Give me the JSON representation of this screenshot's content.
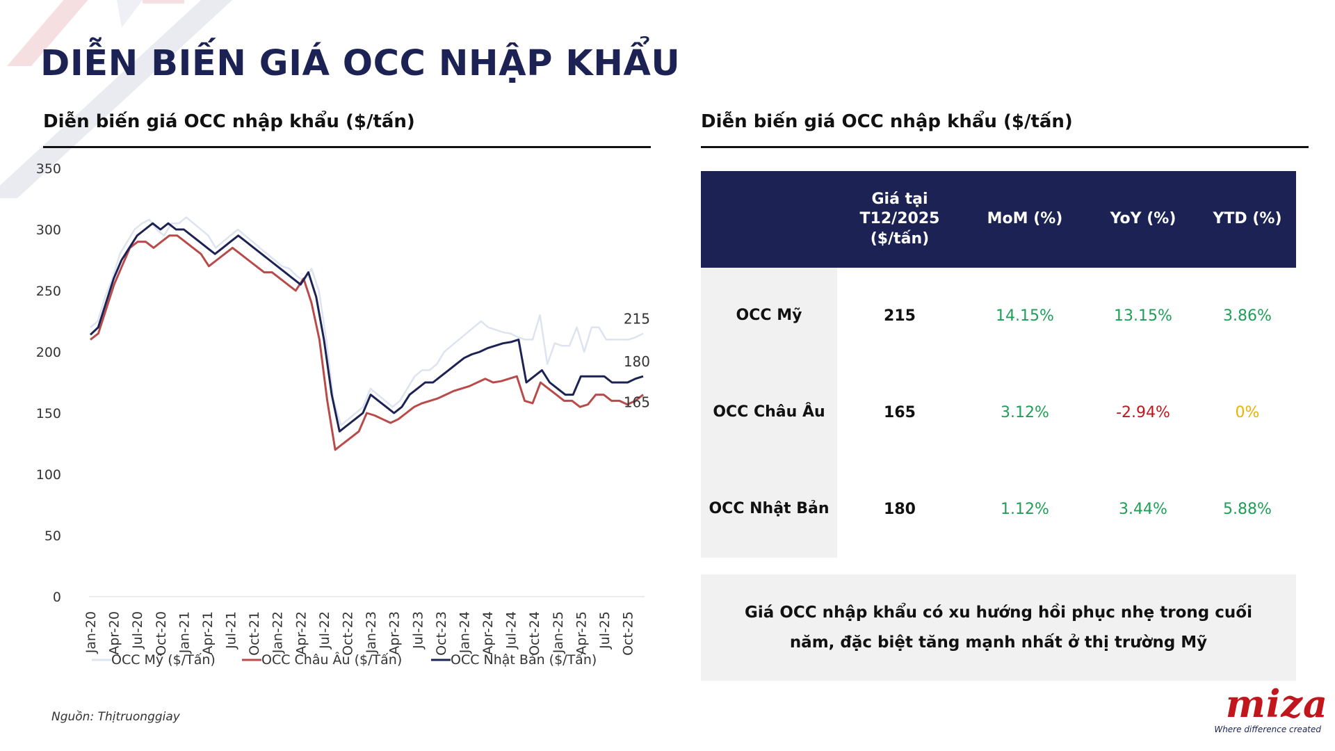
{
  "page": {
    "title": "DIỄN BIẾN GIÁ OCC NHẬP KHẨU",
    "source": "Nguồn: Thịtruonggiay"
  },
  "left_panel": {
    "title": "Diễn biến giá OCC nhập khẩu ($/tấn)"
  },
  "right_panel": {
    "title": "Diễn biến giá OCC nhập khẩu ($/tấn)",
    "table": {
      "headers": [
        "",
        "Giá tại T12/2025 ($/tấn)",
        "MoM (%)",
        "YoY (%)",
        "YTD (%)"
      ],
      "rows": [
        {
          "name": "OCC Mỹ",
          "price": "215",
          "mom": "14.15%",
          "yoy": "13.15%",
          "ytd": "3.86%"
        },
        {
          "name": "OCC Châu Âu",
          "price": "165",
          "mom": "3.12%",
          "yoy": "-2.94%",
          "ytd": "0%"
        },
        {
          "name": "OCC Nhật Bản",
          "price": "180",
          "mom": "1.12%",
          "yoy": "3.44%",
          "ytd": "5.88%"
        }
      ]
    },
    "note": "Giá OCC nhập khẩu có xu hướng hồi phục nhẹ trong cuối năm, đặc biệt tăng mạnh nhất ở thị trường Mỹ"
  },
  "colors": {
    "navy": "#1c2354",
    "positive": "#1e9e57",
    "negative": "#c0161c",
    "neutral": "#e9b400",
    "brand_red": "#c0161c"
  },
  "logo": {
    "text": "miza",
    "tagline": "Where difference created"
  },
  "chart_data": {
    "type": "line",
    "title": "Diễn biến giá OCC nhập khẩu ($/tấn)",
    "ylim": [
      0,
      350
    ],
    "yticks": [
      0,
      50,
      100,
      150,
      200,
      250,
      300,
      350
    ],
    "grid": false,
    "legend_position": "bottom",
    "x_tick_labels": [
      "Jan-20",
      "Apr-20",
      "Jul-20",
      "Oct-20",
      "Jan-21",
      "Apr-21",
      "Jul-21",
      "Oct-21",
      "Jan-22",
      "Apr-22",
      "Jul-22",
      "Oct-22",
      "Jan-23",
      "Apr-23",
      "Jul-23",
      "Oct-23",
      "Jan-24",
      "Apr-24",
      "Jul-24",
      "Oct-24",
      "Jan-25",
      "Apr-25",
      "Jul-25",
      "Oct-25"
    ],
    "x_start": "Jan-20",
    "x_end": "Dec-25",
    "series": [
      {
        "name": "OCC Mỹ ($/Tấn)",
        "color": "#dde3ef",
        "end_label": "215",
        "values": [
          220,
          225,
          245,
          260,
          280,
          290,
          300,
          305,
          308,
          300,
          295,
          305,
          305,
          310,
          305,
          300,
          295,
          285,
          290,
          295,
          300,
          295,
          290,
          285,
          280,
          275,
          270,
          268,
          262,
          258,
          268,
          250,
          210,
          160,
          140,
          145,
          150,
          155,
          170,
          165,
          160,
          155,
          160,
          170,
          180,
          185,
          185,
          190,
          200,
          205,
          210,
          215,
          220,
          225,
          220,
          218,
          216,
          215,
          212,
          210,
          210,
          230,
          190,
          207,
          205,
          205,
          220,
          200,
          220,
          220,
          210,
          210,
          210,
          210,
          212,
          215
        ]
      },
      {
        "name": "OCC Châu Âu ($/Tấn)",
        "color": "#b94a4a",
        "end_label": "165",
        "values": [
          210,
          215,
          235,
          255,
          270,
          285,
          290,
          290,
          285,
          290,
          295,
          295,
          290,
          285,
          280,
          270,
          275,
          280,
          285,
          280,
          275,
          270,
          265,
          265,
          260,
          255,
          250,
          260,
          240,
          210,
          160,
          120,
          125,
          130,
          135,
          150,
          148,
          145,
          142,
          145,
          150,
          155,
          158,
          160,
          162,
          165,
          168,
          170,
          172,
          175,
          178,
          175,
          176,
          178,
          180,
          160,
          158,
          175,
          170,
          165,
          160,
          160,
          155,
          157,
          165,
          165,
          160,
          160,
          157,
          160,
          165
        ]
      },
      {
        "name": "OCC Nhật Bản ($/Tấn)",
        "color": "#1c2354",
        "end_label": "180",
        "values": [
          214,
          220,
          240,
          260,
          275,
          285,
          295,
          300,
          305,
          300,
          305,
          300,
          300,
          295,
          290,
          285,
          280,
          285,
          290,
          295,
          290,
          285,
          280,
          275,
          270,
          265,
          260,
          255,
          265,
          245,
          210,
          165,
          135,
          140,
          145,
          150,
          165,
          160,
          155,
          150,
          155,
          165,
          170,
          175,
          175,
          180,
          185,
          190,
          195,
          198,
          200,
          203,
          205,
          207,
          208,
          210,
          175,
          180,
          185,
          175,
          170,
          165,
          165,
          180,
          180,
          180,
          180,
          175,
          175,
          175,
          178,
          180
        ]
      }
    ]
  }
}
